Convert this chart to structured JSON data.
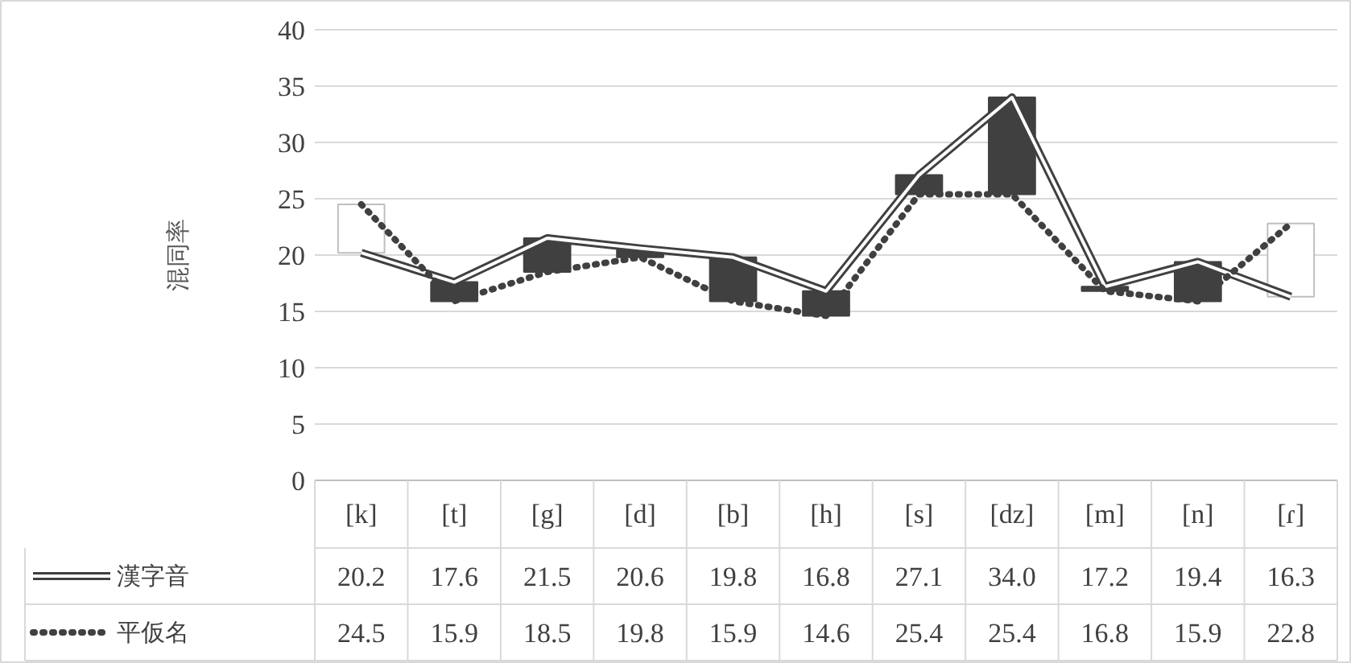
{
  "chart_data": {
    "type": "line",
    "ylabel": "混同率",
    "categories": [
      "[k]",
      "[t]",
      "[g]",
      "[d]",
      "[b]",
      "[h]",
      "[s]",
      "[dz]",
      "[m]",
      "[n]",
      "[ɾ]"
    ],
    "series": [
      {
        "type": "candlestick",
        "color": "#404040",
        "colors": [
          "#ffffff",
          "#404040",
          "#404040",
          "#404040",
          "#404040",
          "#404040",
          "#404040",
          "#404040",
          "#404040",
          "#404040",
          "#ffffff"
        ],
        "ohlc": [
          [
            20.2,
            24.5,
            20.2,
            24.5
          ],
          [
            17.6,
            17.6,
            15.9,
            15.9
          ],
          [
            21.5,
            21.5,
            18.5,
            18.5
          ],
          [
            20.6,
            20.6,
            19.8,
            19.8
          ],
          [
            19.8,
            19.8,
            15.9,
            15.9
          ],
          [
            16.8,
            16.8,
            14.6,
            14.6
          ],
          [
            27.1,
            27.1,
            25.4,
            25.4
          ],
          [
            34.0,
            34.0,
            25.4,
            25.4
          ],
          [
            17.2,
            17.2,
            16.8,
            16.8
          ],
          [
            19.4,
            19.4,
            15.9,
            15.9
          ],
          [
            16.3,
            22.8,
            16.3,
            22.8
          ]
        ]
      },
      {
        "name": "漢字音",
        "color": "#404040",
        "line_style": "solid",
        "values": [
          20.2,
          17.6,
          21.5,
          20.6,
          19.8,
          16.8,
          27.1,
          34.0,
          17.2,
          19.4,
          16.3
        ],
        "value_labels": [
          "20.2",
          "17.6",
          "21.5",
          "20.6",
          "19.8",
          "16.8",
          "27.1",
          "34.0",
          "17.2",
          "19.4",
          "16.3"
        ]
      },
      {
        "name": "平仮名",
        "color": "#404040",
        "line_style": "dotted",
        "values": [
          24.5,
          15.9,
          18.5,
          19.8,
          15.9,
          14.6,
          25.4,
          25.4,
          16.8,
          15.9,
          22.8
        ],
        "value_labels": [
          "24.5",
          "15.9",
          "18.5",
          "19.8",
          "15.9",
          "14.6",
          "25.4",
          "25.4",
          "16.8",
          "15.9",
          "22.8"
        ]
      }
    ],
    "ylim": [
      0,
      40
    ],
    "yticks": [
      0,
      5,
      10,
      15,
      20,
      25,
      30,
      35,
      40
    ],
    "grid": "y",
    "legend": "bottom",
    "marker": "none"
  }
}
